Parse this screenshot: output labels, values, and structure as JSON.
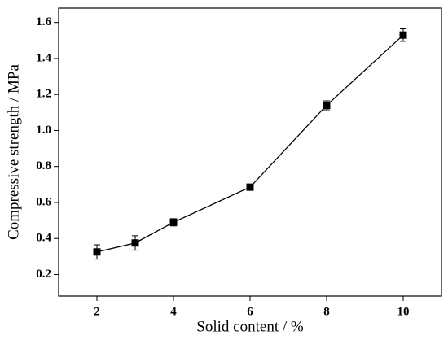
{
  "chart_data": {
    "type": "line",
    "x_label": "Solid content / %",
    "y_label": "Compressive strength / MPa",
    "x": [
      2,
      3,
      4,
      6,
      8,
      10
    ],
    "series": [
      {
        "color": "#000000",
        "values": [
          0.325,
          0.375,
          0.49,
          0.685,
          1.14,
          1.53
        ],
        "errors": [
          0.04,
          0.04,
          0.02,
          0.015,
          0.025,
          0.035
        ]
      }
    ],
    "xlim": [
      1,
      11
    ],
    "xticks": [
      2,
      4,
      6,
      8,
      10
    ],
    "ylim": [
      0.08,
      1.68
    ],
    "yticks": [
      0.2,
      0.4,
      0.6,
      0.8,
      {
        "value": 1,
        "label": "1.0"
      },
      1.2,
      1.4,
      1.6
    ],
    "grid": false
  }
}
